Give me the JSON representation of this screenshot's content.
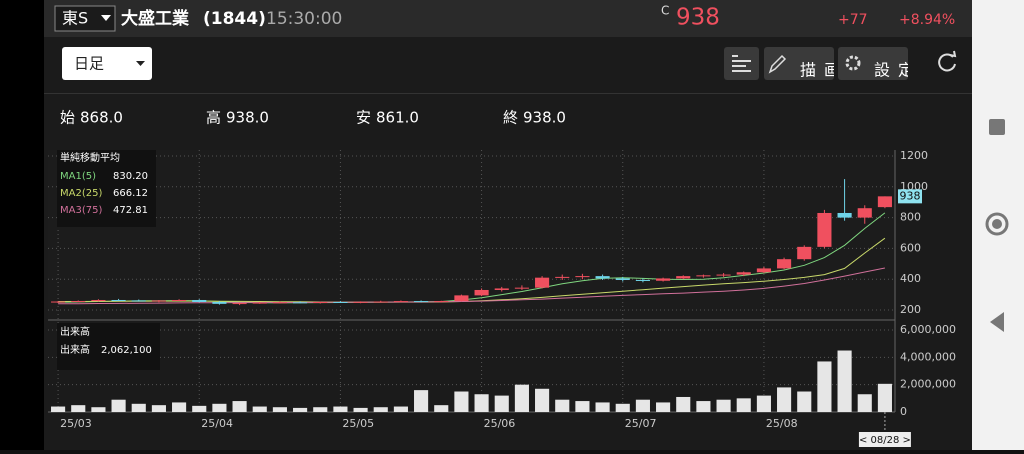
{
  "header": {
    "market": "東S",
    "name": "大盛工業",
    "code": "(1844)",
    "time": "15:30:00",
    "flag": "C",
    "price": "938",
    "change": "+77",
    "change_pct": "+8.94%"
  },
  "toolbar": {
    "period": "日足",
    "draw": "描画",
    "settings": "設定"
  },
  "ohlc": [
    {
      "label": "始",
      "value": "868.0"
    },
    {
      "label": "高",
      "value": "938.0"
    },
    {
      "label": "安",
      "value": "861.0"
    },
    {
      "label": "終",
      "value": "938.0"
    }
  ],
  "chart_data": {
    "type": "candlestick",
    "categories": [
      "25/03",
      null,
      null,
      null,
      null,
      null,
      null,
      "25/04",
      null,
      null,
      null,
      null,
      null,
      null,
      "25/05",
      null,
      null,
      null,
      null,
      null,
      null,
      "25/06",
      null,
      null,
      null,
      null,
      null,
      null,
      "25/07",
      null,
      null,
      null,
      null,
      null,
      null,
      "25/08",
      null,
      null,
      null,
      null,
      null,
      null
    ],
    "open": [
      250,
      255,
      258,
      265,
      262,
      258,
      262,
      265,
      252,
      240,
      245,
      248,
      250,
      248,
      252,
      250,
      253,
      255,
      258,
      254,
      258,
      295,
      330,
      340,
      345,
      410,
      415,
      420,
      405,
      395,
      390,
      405,
      420,
      425,
      430,
      445,
      470,
      530,
      610,
      830,
      800,
      868
    ],
    "high": [
      258,
      262,
      270,
      272,
      268,
      265,
      270,
      270,
      258,
      248,
      252,
      255,
      256,
      254,
      258,
      256,
      260,
      262,
      262,
      260,
      300,
      340,
      350,
      360,
      420,
      430,
      435,
      430,
      415,
      405,
      410,
      425,
      430,
      440,
      450,
      480,
      540,
      620,
      850,
      1050,
      880,
      938
    ],
    "low": [
      245,
      250,
      255,
      260,
      255,
      250,
      258,
      250,
      235,
      232,
      240,
      242,
      244,
      242,
      246,
      244,
      248,
      250,
      250,
      248,
      255,
      290,
      320,
      330,
      340,
      395,
      400,
      395,
      385,
      380,
      385,
      400,
      410,
      415,
      420,
      440,
      465,
      520,
      600,
      780,
      760,
      861
    ],
    "close": [
      255,
      258,
      265,
      262,
      258,
      262,
      265,
      252,
      240,
      245,
      248,
      250,
      248,
      252,
      250,
      253,
      255,
      258,
      254,
      258,
      295,
      330,
      340,
      345,
      410,
      415,
      420,
      405,
      395,
      390,
      405,
      420,
      425,
      430,
      445,
      470,
      530,
      610,
      830,
      800,
      861,
      938
    ],
    "up_color": "#f0505f",
    "down_color": "#6fd3e8",
    "ylim": [
      150,
      1250
    ],
    "yticks": [
      200,
      400,
      600,
      800,
      1000,
      1200
    ],
    "grid": true,
    "ma_title": "単純移動平均",
    "series": [
      {
        "name": "MA1(5)",
        "value_label": "830.20",
        "color": "#7fd67f",
        "values": [
          250,
          252,
          255,
          258,
          260,
          260,
          261,
          260,
          255,
          250,
          247,
          246,
          247,
          248,
          249,
          250,
          251,
          252,
          254,
          255,
          265,
          280,
          300,
          320,
          345,
          370,
          390,
          405,
          410,
          405,
          400,
          398,
          400,
          410,
          425,
          440,
          460,
          490,
          540,
          620,
          730,
          830.2
        ]
      },
      {
        "name": "MA2(25)",
        "value_label": "666.12",
        "color": "#c8d86a",
        "values": [
          255,
          255,
          256,
          257,
          257,
          258,
          258,
          258,
          257,
          256,
          255,
          254,
          253,
          252,
          251,
          251,
          251,
          251,
          251,
          252,
          255,
          260,
          266,
          273,
          282,
          292,
          302,
          312,
          322,
          332,
          342,
          352,
          362,
          370,
          378,
          387,
          398,
          412,
          430,
          470,
          570,
          666.12
        ]
      },
      {
        "name": "MA3(75)",
        "value_label": "472.81",
        "color": "#d0709a",
        "values": [
          240,
          241,
          242,
          243,
          244,
          245,
          246,
          247,
          247,
          248,
          248,
          249,
          249,
          250,
          250,
          251,
          251,
          252,
          252,
          253,
          255,
          258,
          262,
          266,
          271,
          277,
          283,
          289,
          295,
          300,
          305,
          310,
          316,
          322,
          330,
          340,
          355,
          372,
          395,
          420,
          447,
          472.81
        ]
      }
    ],
    "last_price_label": "938",
    "volume": {
      "title": "出来高",
      "label": "出来高",
      "last_label": "2,062,100",
      "color": "#e6e6e6",
      "values": [
        400000,
        500000,
        350000,
        900000,
        600000,
        500000,
        700000,
        450000,
        600000,
        800000,
        400000,
        350000,
        300000,
        350000,
        400000,
        300000,
        350000,
        400000,
        1600000,
        500000,
        1500000,
        1300000,
        1200000,
        2000000,
        1700000,
        900000,
        800000,
        700000,
        600000,
        900000,
        700000,
        1100000,
        800000,
        900000,
        1000000,
        1200000,
        1800000,
        1500000,
        3700000,
        4500000,
        1300000,
        2062100
      ],
      "ylim": [
        0,
        6500000
      ],
      "yticks": [
        0,
        {
          "value": 2000000,
          "label": "2,000,000"
        },
        {
          "value": 4000000,
          "label": "4,000,000"
        },
        {
          "value": 6000000,
          "label": "6,000,000"
        }
      ]
    },
    "cursor_label": "< 08/28 >"
  }
}
